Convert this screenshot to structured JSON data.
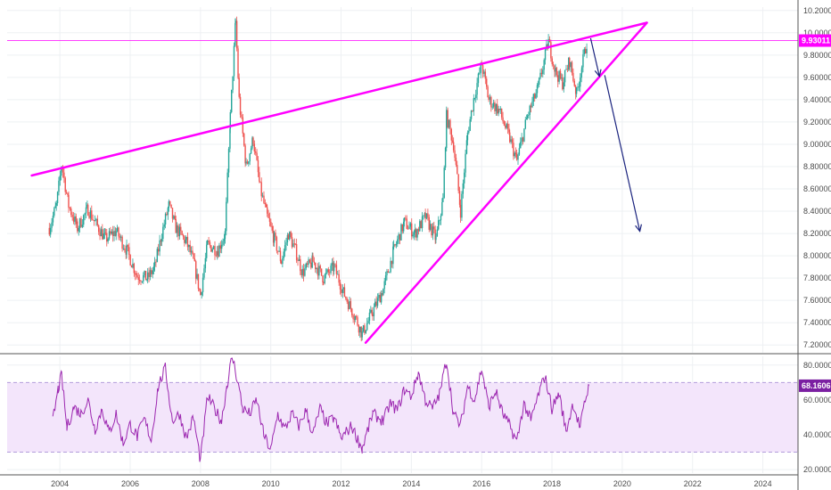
{
  "colors": {
    "candle_up": "#26a69a",
    "candle_down": "#ef5350",
    "trendline": "#ff00ff",
    "current_price_line": "#ff00ff",
    "arrow": "#1a237e",
    "rsi_line": "#9c27b0",
    "rsi_band": "#f3e5fb",
    "rsi_tag": "#7b1fa2",
    "price_tag": "#ff00ff"
  },
  "chart_data": [
    {
      "type": "candlestick",
      "title": "",
      "xlabel": "",
      "ylabel": "",
      "x_ticks": [
        "2004",
        "2006",
        "2008",
        "2010",
        "2012",
        "2014",
        "2016",
        "2018",
        "2020",
        "2022",
        "2024"
      ],
      "y_ticks": [
        "7.20000",
        "7.40000",
        "7.60000",
        "7.80000",
        "8.00000",
        "8.20000",
        "8.40000",
        "8.60000",
        "8.80000",
        "9.00000",
        "9.20000",
        "9.40000",
        "9.60000",
        "9.80000",
        "10.00000",
        "10.20000"
      ],
      "xlim": [
        2002.5,
        2025
      ],
      "ylim": [
        7.13,
        10.23
      ],
      "current_price": 9.93011,
      "current_price_label": "9.93011",
      "grid": true,
      "series": [
        {
          "close_points": [
            [
              2003.7,
              8.25
            ],
            [
              2003.9,
              8.45
            ],
            [
              2004.05,
              8.82
            ],
            [
              2004.25,
              8.45
            ],
            [
              2004.5,
              8.25
            ],
            [
              2004.8,
              8.42
            ],
            [
              2005.0,
              8.3
            ],
            [
              2005.3,
              8.15
            ],
            [
              2005.6,
              8.22
            ],
            [
              2005.9,
              8.05
            ],
            [
              2006.2,
              7.82
            ],
            [
              2006.5,
              7.8
            ],
            [
              2006.7,
              7.9
            ],
            [
              2006.9,
              8.2
            ],
            [
              2007.1,
              8.45
            ],
            [
              2007.3,
              8.25
            ],
            [
              2007.6,
              8.12
            ],
            [
              2007.8,
              7.95
            ],
            [
              2008.0,
              7.65
            ],
            [
              2008.2,
              8.1
            ],
            [
              2008.5,
              8.05
            ],
            [
              2008.7,
              8.2
            ],
            [
              2008.85,
              9.25
            ],
            [
              2009.0,
              10.1
            ],
            [
              2009.1,
              9.4
            ],
            [
              2009.3,
              8.8
            ],
            [
              2009.5,
              9.05
            ],
            [
              2009.7,
              8.6
            ],
            [
              2009.9,
              8.35
            ],
            [
              2010.1,
              8.15
            ],
            [
              2010.3,
              7.95
            ],
            [
              2010.5,
              8.2
            ],
            [
              2010.7,
              8.05
            ],
            [
              2010.9,
              7.85
            ],
            [
              2011.2,
              7.95
            ],
            [
              2011.5,
              7.8
            ],
            [
              2011.8,
              7.9
            ],
            [
              2012.1,
              7.65
            ],
            [
              2012.4,
              7.45
            ],
            [
              2012.6,
              7.3
            ],
            [
              2012.9,
              7.5
            ],
            [
              2013.2,
              7.7
            ],
            [
              2013.5,
              8.05
            ],
            [
              2013.8,
              8.3
            ],
            [
              2014.1,
              8.2
            ],
            [
              2014.4,
              8.35
            ],
            [
              2014.7,
              8.15
            ],
            [
              2014.9,
              8.5
            ],
            [
              2015.0,
              9.25
            ],
            [
              2015.2,
              9.0
            ],
            [
              2015.4,
              8.4
            ],
            [
              2015.6,
              9.1
            ],
            [
              2015.8,
              9.45
            ],
            [
              2016.0,
              9.72
            ],
            [
              2016.2,
              9.4
            ],
            [
              2016.5,
              9.3
            ],
            [
              2016.8,
              9.05
            ],
            [
              2017.0,
              8.85
            ],
            [
              2017.3,
              9.25
            ],
            [
              2017.6,
              9.5
            ],
            [
              2017.9,
              9.92
            ],
            [
              2018.1,
              9.65
            ],
            [
              2018.3,
              9.55
            ],
            [
              2018.5,
              9.75
            ],
            [
              2018.7,
              9.45
            ],
            [
              2018.85,
              9.7
            ],
            [
              2019.0,
              9.93
            ]
          ]
        }
      ],
      "annotations": [
        {
          "kind": "upper-trendline",
          "x": [
            2003.2,
            2020.7
          ],
          "y": [
            8.72,
            10.09
          ]
        },
        {
          "kind": "lower-trendline",
          "x": [
            2012.7,
            2020.7
          ],
          "y": [
            7.22,
            10.09
          ]
        },
        {
          "kind": "arrow-short",
          "x": [
            2019.1,
            2019.35
          ],
          "y": [
            9.95,
            9.61
          ]
        },
        {
          "kind": "arrow-long",
          "x": [
            2019.5,
            2020.5
          ],
          "y": [
            9.62,
            8.22
          ]
        }
      ]
    },
    {
      "type": "line",
      "title": "",
      "x_ticks": [],
      "y_ticks": [
        "20.0000",
        "40.0000",
        "60.0000",
        "80.0000"
      ],
      "xlim": [
        2002.5,
        2025
      ],
      "ylim": [
        18,
        85
      ],
      "band": [
        30,
        70
      ],
      "current_value": 68.1606,
      "current_value_label": "68.1606",
      "series": [
        {
          "points": [
            [
              2003.8,
              48
            ],
            [
              2003.95,
              66
            ],
            [
              2004.05,
              74
            ],
            [
              2004.2,
              44
            ],
            [
              2004.4,
              56
            ],
            [
              2004.6,
              52
            ],
            [
              2004.8,
              60
            ],
            [
              2005.0,
              43
            ],
            [
              2005.2,
              55
            ],
            [
              2005.4,
              41
            ],
            [
              2005.6,
              52
            ],
            [
              2005.8,
              35
            ],
            [
              2006.0,
              46
            ],
            [
              2006.2,
              39
            ],
            [
              2006.4,
              49
            ],
            [
              2006.6,
              37
            ],
            [
              2006.8,
              68
            ],
            [
              2007.0,
              78
            ],
            [
              2007.2,
              48
            ],
            [
              2007.4,
              52
            ],
            [
              2007.6,
              38
            ],
            [
              2007.8,
              50
            ],
            [
              2008.0,
              25
            ],
            [
              2008.2,
              62
            ],
            [
              2008.4,
              55
            ],
            [
              2008.6,
              48
            ],
            [
              2008.75,
              68
            ],
            [
              2008.9,
              85
            ],
            [
              2009.05,
              72
            ],
            [
              2009.2,
              55
            ],
            [
              2009.4,
              52
            ],
            [
              2009.6,
              60
            ],
            [
              2009.8,
              40
            ],
            [
              2010.0,
              31
            ],
            [
              2010.2,
              52
            ],
            [
              2010.4,
              43
            ],
            [
              2010.6,
              52
            ],
            [
              2010.8,
              45
            ],
            [
              2011.0,
              54
            ],
            [
              2011.2,
              40
            ],
            [
              2011.4,
              55
            ],
            [
              2011.6,
              46
            ],
            [
              2011.8,
              50
            ],
            [
              2012.0,
              38
            ],
            [
              2012.3,
              45
            ],
            [
              2012.6,
              32
            ],
            [
              2012.9,
              52
            ],
            [
              2013.2,
              48
            ],
            [
              2013.4,
              58
            ],
            [
              2013.6,
              54
            ],
            [
              2013.8,
              66
            ],
            [
              2014.0,
              62
            ],
            [
              2014.2,
              76
            ],
            [
              2014.4,
              60
            ],
            [
              2014.6,
              55
            ],
            [
              2014.8,
              63
            ],
            [
              2015.0,
              83
            ],
            [
              2015.2,
              52
            ],
            [
              2015.4,
              45
            ],
            [
              2015.6,
              68
            ],
            [
              2015.8,
              60
            ],
            [
              2016.0,
              78
            ],
            [
              2016.2,
              56
            ],
            [
              2016.4,
              65
            ],
            [
              2016.6,
              52
            ],
            [
              2016.8,
              45
            ],
            [
              2017.0,
              36
            ],
            [
              2017.2,
              58
            ],
            [
              2017.4,
              48
            ],
            [
              2017.6,
              62
            ],
            [
              2017.8,
              74
            ],
            [
              2018.0,
              55
            ],
            [
              2018.2,
              64
            ],
            [
              2018.4,
              42
            ],
            [
              2018.6,
              58
            ],
            [
              2018.8,
              44
            ],
            [
              2018.95,
              60
            ],
            [
              2019.05,
              68
            ]
          ]
        }
      ]
    }
  ]
}
